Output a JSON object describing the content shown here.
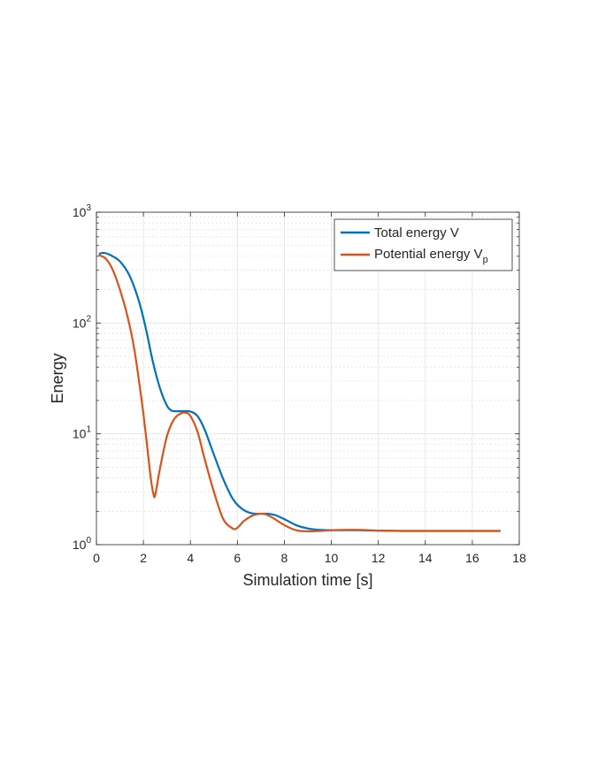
{
  "chart_data": {
    "type": "line",
    "title": "",
    "xlabel": "Simulation time [s]",
    "ylabel": "Energy",
    "xlim": [
      0,
      18
    ],
    "ylim": [
      1,
      1000
    ],
    "yscale": "log",
    "grid": true,
    "minor_grid": true,
    "legend_position": "top-right",
    "x_ticks": [
      0,
      2,
      4,
      6,
      8,
      10,
      12,
      14,
      16,
      18
    ],
    "x_tick_labels": [
      "0",
      "2",
      "4",
      "6",
      "8",
      "10",
      "12",
      "14",
      "16",
      "18"
    ],
    "y_ticks": [
      1,
      10,
      100,
      1000
    ],
    "y_tick_labels": [
      {
        "base": "10",
        "exp": "0"
      },
      {
        "base": "10",
        "exp": "1"
      },
      {
        "base": "10",
        "exp": "2"
      },
      {
        "base": "10",
        "exp": "3"
      }
    ],
    "series": [
      {
        "name": "Total energy V",
        "legend_main": "Total energy V",
        "legend_sub": "",
        "color": "#0072BD",
        "x": [
          0.1,
          0.3,
          0.6,
          1.0,
          1.4,
          1.8,
          2.1,
          2.4,
          2.7,
          3.0,
          3.2,
          3.4,
          3.7,
          4.0,
          4.3,
          4.6,
          5.0,
          5.4,
          5.8,
          6.2,
          6.6,
          7.0,
          7.3,
          7.6,
          8.0,
          8.5,
          9.0,
          9.5,
          10.0,
          11.0,
          12.0,
          13.0,
          14.0,
          15.0,
          16.0,
          17.2
        ],
        "y": [
          420,
          430,
          410,
          360,
          270,
          160,
          90,
          45,
          26,
          18,
          16.2,
          16,
          16,
          15.9,
          14.5,
          11,
          6.5,
          3.9,
          2.6,
          2.1,
          1.92,
          1.9,
          1.9,
          1.85,
          1.7,
          1.5,
          1.4,
          1.36,
          1.35,
          1.35,
          1.34,
          1.33,
          1.33,
          1.33,
          1.33,
          1.33
        ]
      },
      {
        "name": "Potential energy V_p",
        "legend_main": "Potential energy V",
        "legend_sub": "p",
        "color": "#D95319",
        "x": [
          0.1,
          0.4,
          0.7,
          1.0,
          1.3,
          1.6,
          1.9,
          2.1,
          2.3,
          2.42,
          2.5,
          2.7,
          3.0,
          3.3,
          3.6,
          3.8,
          4.0,
          4.3,
          4.6,
          5.0,
          5.4,
          5.8,
          6.0,
          6.3,
          6.7,
          7.0,
          7.2,
          7.5,
          8.0,
          8.5,
          9.0,
          9.5,
          10.0,
          11.0,
          12.0,
          13.0,
          14.0,
          15.0,
          16.0,
          17.2
        ],
        "y": [
          410,
          380,
          300,
          200,
          120,
          60,
          22,
          10,
          4.2,
          2.9,
          2.8,
          4.8,
          9.5,
          13.5,
          15.3,
          15.5,
          14.5,
          10.5,
          6.0,
          3.0,
          1.7,
          1.4,
          1.42,
          1.65,
          1.85,
          1.9,
          1.88,
          1.75,
          1.5,
          1.35,
          1.32,
          1.33,
          1.35,
          1.36,
          1.34,
          1.33,
          1.33,
          1.33,
          1.33,
          1.33
        ]
      }
    ]
  }
}
